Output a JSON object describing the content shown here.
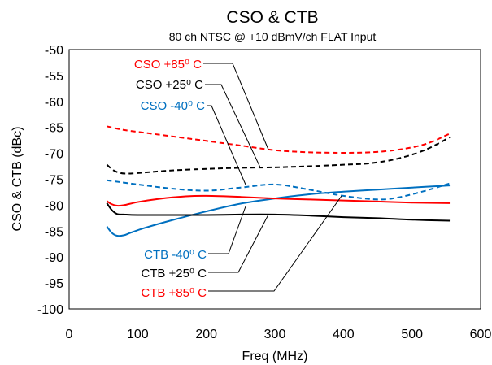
{
  "chart_data": {
    "type": "line",
    "title": "CSO & CTB",
    "subtitle": "80 ch NTSC @ +10 dBmV/ch FLAT Input",
    "xlabel": "Freq (MHz)",
    "ylabel": "CSO & CTB (dBc)",
    "xlim": [
      0,
      600
    ],
    "ylim": [
      -100,
      -50
    ],
    "x_ticks": [
      "0",
      "100",
      "200",
      "300",
      "400",
      "500",
      "600"
    ],
    "y_ticks": [
      "-50",
      "-55",
      "-60",
      "-65",
      "-70",
      "-75",
      "-80",
      "-85",
      "-90",
      "-95",
      "-100"
    ],
    "grid": false,
    "legend": "none (inline callout labels)",
    "series": [
      {
        "name": "CSO +85⁰ C",
        "color": "#ff0000",
        "style": "dashed",
        "x": [
          55,
          80,
          120,
          160,
          200,
          250,
          300,
          350,
          400,
          440,
          480,
          520,
          555
        ],
        "y": [
          -64.8,
          -65.5,
          -66.2,
          -66.9,
          -67.6,
          -68.5,
          -69.4,
          -69.8,
          -69.9,
          -69.8,
          -69.3,
          -68.2,
          -66.2
        ]
      },
      {
        "name": "CSO +25⁰ C",
        "color": "#000000",
        "style": "dashed",
        "x": [
          55,
          65,
          75,
          85,
          100,
          150,
          200,
          250,
          300,
          350,
          400,
          440,
          480,
          520,
          555
        ],
        "y": [
          -72.2,
          -73.3,
          -73.8,
          -73.9,
          -73.8,
          -73.3,
          -73.0,
          -72.8,
          -72.7,
          -72.5,
          -72.2,
          -71.9,
          -71.0,
          -69.3,
          -66.9
        ]
      },
      {
        "name": "CSO -40⁰ C",
        "color": "#0070c0",
        "style": "dashed",
        "x": [
          55,
          100,
          150,
          200,
          250,
          300,
          350,
          400,
          450,
          480,
          520,
          555
        ],
        "y": [
          -75.2,
          -76.0,
          -76.8,
          -77.2,
          -76.6,
          -76.0,
          -77.0,
          -78.2,
          -78.9,
          -78.5,
          -77.2,
          -75.8
        ]
      },
      {
        "name": "CTB -40⁰ C",
        "color": "#0070c0",
        "style": "solid",
        "x": [
          55,
          62,
          70,
          80,
          90,
          110,
          150,
          200,
          250,
          300,
          350,
          400,
          450,
          500,
          555
        ],
        "y": [
          -84.1,
          -85.3,
          -85.9,
          -85.8,
          -85.3,
          -84.4,
          -82.9,
          -81.2,
          -79.7,
          -78.7,
          -77.9,
          -77.4,
          -77.0,
          -76.6,
          -76.2
        ]
      },
      {
        "name": "CTB +25⁰ C",
        "color": "#000000",
        "style": "solid",
        "x": [
          55,
          62,
          70,
          80,
          100,
          150,
          200,
          250,
          300,
          350,
          400,
          450,
          500,
          555
        ],
        "y": [
          -79.6,
          -80.9,
          -81.7,
          -81.8,
          -81.9,
          -81.9,
          -81.9,
          -81.8,
          -81.8,
          -82.0,
          -82.3,
          -82.5,
          -82.8,
          -83.0
        ]
      },
      {
        "name": "CTB +85⁰ C",
        "color": "#ff0000",
        "style": "solid",
        "x": [
          55,
          62,
          70,
          80,
          100,
          130,
          170,
          200,
          250,
          300,
          350,
          400,
          450,
          500,
          555
        ],
        "y": [
          -79.2,
          -79.8,
          -80.1,
          -80.0,
          -79.4,
          -78.8,
          -78.3,
          -78.2,
          -78.4,
          -78.7,
          -78.9,
          -79.1,
          -79.3,
          -79.5,
          -79.6
        ]
      }
    ]
  }
}
